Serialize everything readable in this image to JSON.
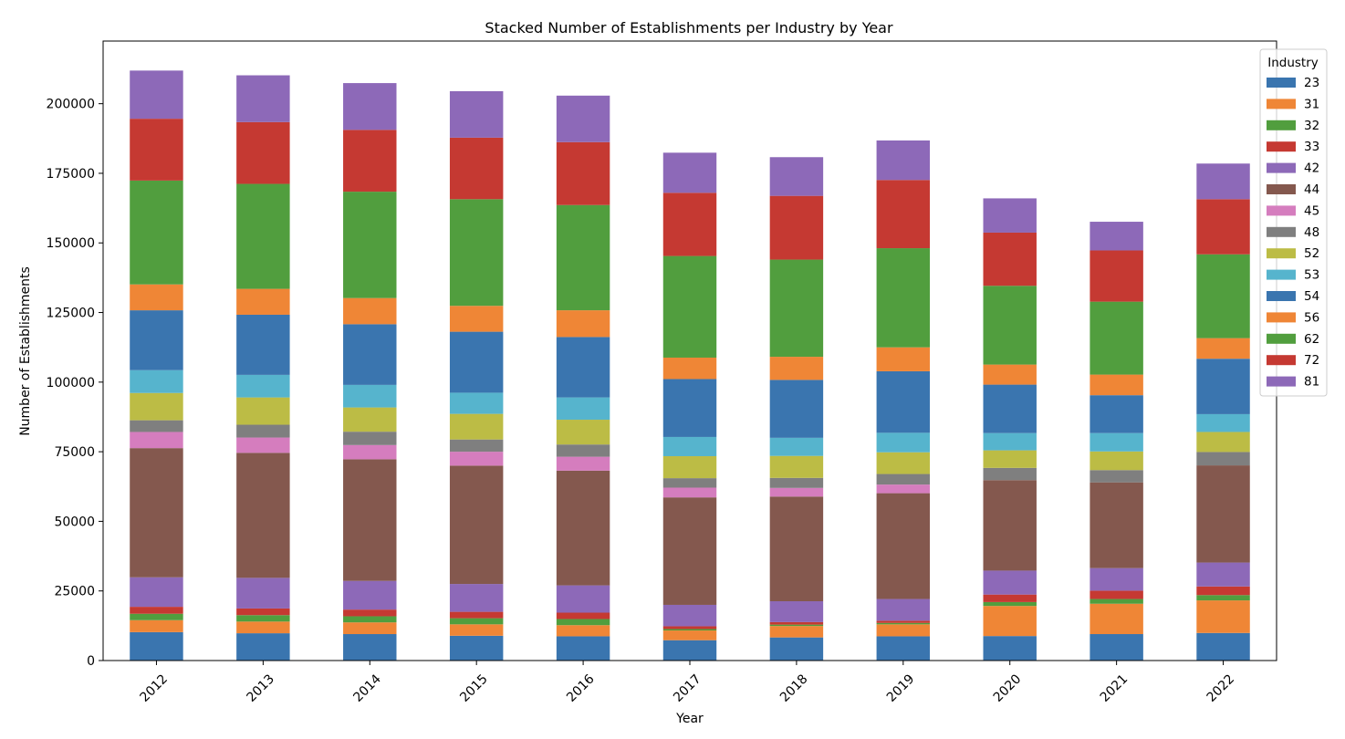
{
  "chart_data": {
    "type": "bar",
    "stacked": true,
    "title": "Stacked Number of Establishments per Industry by Year",
    "xlabel": "Year",
    "ylabel": "Number of Establishments",
    "categories": [
      "2012",
      "2013",
      "2014",
      "2015",
      "2016",
      "2017",
      "2018",
      "2019",
      "2020",
      "2021",
      "2022"
    ],
    "ylim": [
      0,
      222500
    ],
    "yticks": [
      0,
      25000,
      50000,
      75000,
      100000,
      125000,
      150000,
      175000,
      200000
    ],
    "grid": false,
    "legend": {
      "title": "Industry",
      "placement": "top-right"
    },
    "series": [
      {
        "name": "23",
        "color": "#3a75af",
        "values": [
          10200,
          9800,
          9500,
          8900,
          8700,
          7300,
          8300,
          8700,
          8800,
          9500,
          9900
        ]
      },
      {
        "name": "31",
        "color": "#ef8636",
        "values": [
          4300,
          4200,
          4200,
          4100,
          4000,
          3500,
          4100,
          4300,
          10800,
          10900,
          11700
        ]
      },
      {
        "name": "32",
        "color": "#519e3e",
        "values": [
          2300,
          2300,
          2200,
          2200,
          2200,
          500,
          500,
          500,
          1400,
          1700,
          1900
        ]
      },
      {
        "name": "33",
        "color": "#c53932",
        "values": [
          2500,
          2400,
          2400,
          2300,
          2300,
          1000,
          900,
          800,
          2700,
          3000,
          3100
        ]
      },
      {
        "name": "42",
        "color": "#8d69b8",
        "values": [
          10600,
          11000,
          10300,
          10000,
          9800,
          7700,
          7500,
          7800,
          8600,
          8100,
          8600
        ]
      },
      {
        "name": "44",
        "color": "#84584e",
        "values": [
          46400,
          44900,
          43700,
          42500,
          41200,
          38600,
          37600,
          38000,
          32500,
          30800,
          34900
        ]
      },
      {
        "name": "45",
        "color": "#d57dbe",
        "values": [
          5800,
          5500,
          5100,
          5000,
          5000,
          3500,
          3100,
          3100,
          0,
          0,
          0
        ]
      },
      {
        "name": "48",
        "color": "#7f7f7f",
        "values": [
          4200,
          4600,
          4800,
          4400,
          4400,
          3400,
          3600,
          3800,
          4400,
          4400,
          4800
        ]
      },
      {
        "name": "52",
        "color": "#bcbc45",
        "values": [
          9800,
          9800,
          8700,
          9200,
          8900,
          7900,
          7900,
          7800,
          6300,
          6700,
          7200
        ]
      },
      {
        "name": "53",
        "color": "#56b4cd",
        "values": [
          8200,
          8100,
          8100,
          7600,
          8000,
          6900,
          6500,
          7000,
          6200,
          6600,
          6400
        ]
      },
      {
        "name": "54",
        "color": "#3a75af",
        "values": [
          21500,
          21600,
          21800,
          21900,
          21700,
          20800,
          20800,
          22100,
          17400,
          13600,
          19900
        ]
      },
      {
        "name": "56",
        "color": "#ef8636",
        "values": [
          9300,
          9300,
          9400,
          9300,
          9600,
          7700,
          8300,
          8600,
          7200,
          7400,
          7400
        ]
      },
      {
        "name": "62",
        "color": "#519e3e",
        "values": [
          37300,
          37700,
          38200,
          38300,
          37800,
          36500,
          34900,
          35600,
          28300,
          26200,
          30100
        ]
      },
      {
        "name": "72",
        "color": "#c53932",
        "values": [
          22200,
          22200,
          22200,
          22100,
          22600,
          22700,
          22900,
          24500,
          19100,
          18400,
          19800
        ]
      },
      {
        "name": "81",
        "color": "#8d69b8",
        "values": [
          17300,
          16800,
          16800,
          16700,
          16700,
          14400,
          13900,
          14200,
          12300,
          10300,
          12800
        ]
      }
    ]
  }
}
